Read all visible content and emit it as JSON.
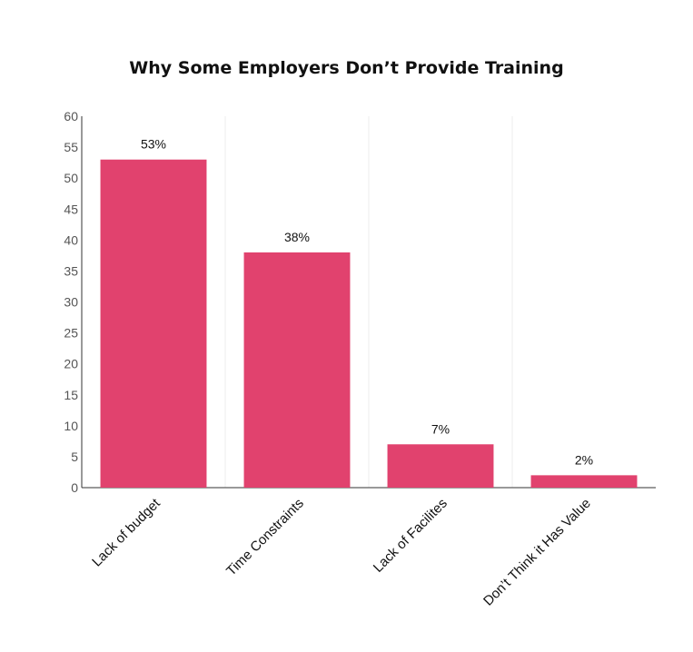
{
  "chart_data": {
    "type": "bar",
    "title": "Why Some Employers Don’t Provide Training",
    "xlabel": "",
    "ylabel": "",
    "categories": [
      "Lack of budget",
      "Time Constraints",
      "Lack of Facilites",
      "Don’t Think it Has Value"
    ],
    "values": [
      53,
      38,
      7,
      2
    ],
    "data_labels": [
      "53%",
      "38%",
      "7%",
      "2%"
    ],
    "ylim": [
      0,
      60
    ],
    "yticks": [
      0,
      5,
      10,
      15,
      20,
      25,
      30,
      35,
      40,
      45,
      50,
      55,
      60
    ],
    "grid": "vertical separators",
    "bar_color": "#e1426e",
    "legend": "none"
  }
}
